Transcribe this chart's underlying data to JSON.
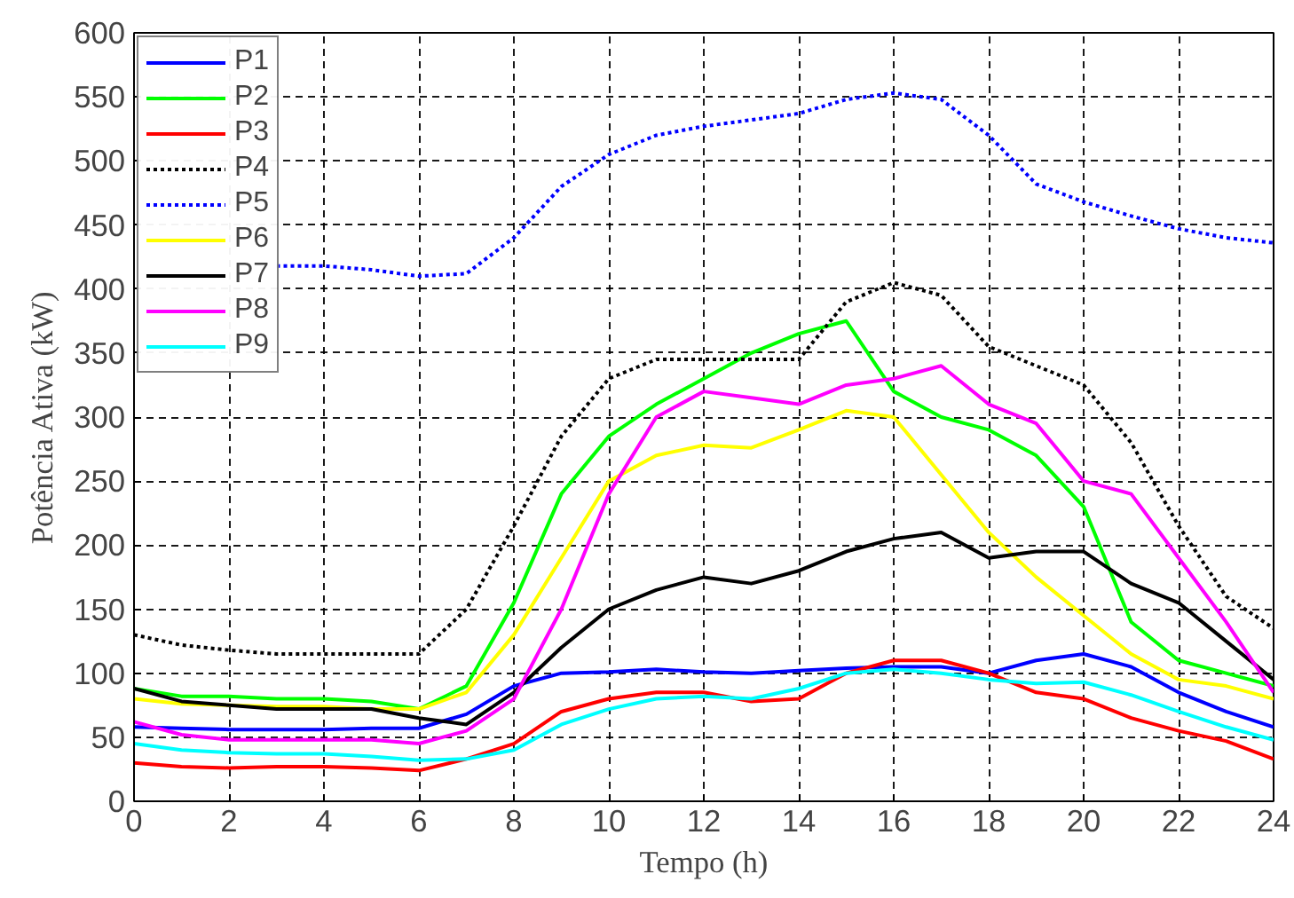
{
  "chart_data": {
    "type": "line",
    "xlabel": "Tempo (h)",
    "ylabel": "Potência Ativa (kW)",
    "x": [
      0,
      1,
      2,
      3,
      4,
      5,
      6,
      7,
      8,
      9,
      10,
      11,
      12,
      13,
      14,
      15,
      16,
      17,
      18,
      19,
      20,
      21,
      22,
      23,
      24
    ],
    "xlim": [
      0,
      24
    ],
    "xticks": [
      0,
      2,
      4,
      6,
      8,
      10,
      12,
      14,
      16,
      18,
      20,
      22,
      24
    ],
    "ylim": [
      0,
      600
    ],
    "yticks": [
      0,
      50,
      100,
      150,
      200,
      250,
      300,
      350,
      400,
      450,
      500,
      550,
      600
    ],
    "grid": true,
    "legend": "top left",
    "marker": "none",
    "series": [
      {
        "name": "P1",
        "color": "#0000ff",
        "line_style": "solid",
        "values": [
          58,
          57,
          56,
          56,
          56,
          57,
          57,
          68,
          90,
          100,
          101,
          103,
          101,
          100,
          102,
          104,
          105,
          105,
          100,
          110,
          115,
          105,
          85,
          70,
          58
        ]
      },
      {
        "name": "P2",
        "color": "#00ff00",
        "line_style": "solid",
        "values": [
          88,
          82,
          82,
          80,
          80,
          78,
          72,
          90,
          155,
          240,
          285,
          310,
          330,
          350,
          365,
          375,
          320,
          300,
          290,
          270,
          230,
          140,
          110,
          100,
          90
        ]
      },
      {
        "name": "P3",
        "color": "#ff0000",
        "line_style": "solid",
        "values": [
          30,
          27,
          26,
          27,
          27,
          26,
          24,
          33,
          45,
          70,
          80,
          85,
          85,
          78,
          80,
          100,
          110,
          110,
          100,
          85,
          80,
          65,
          55,
          47,
          33
        ]
      },
      {
        "name": "P4",
        "color": "#000000",
        "line_style": "dotted",
        "values": [
          130,
          122,
          118,
          115,
          115,
          115,
          115,
          150,
          215,
          285,
          330,
          345,
          345,
          345,
          345,
          390,
          405,
          395,
          355,
          340,
          325,
          280,
          215,
          160,
          135
        ]
      },
      {
        "name": "P5",
        "color": "#0000ff",
        "line_style": "dotted",
        "x": [
          3,
          4,
          5,
          6,
          7,
          8,
          9,
          10,
          11,
          12,
          13,
          14,
          15,
          16,
          17,
          18,
          19,
          20,
          21,
          22,
          23,
          24
        ],
        "values": [
          418,
          418,
          415,
          410,
          412,
          440,
          480,
          505,
          520,
          527,
          532,
          537,
          548,
          553,
          548,
          520,
          482,
          468,
          457,
          447,
          440,
          436
        ]
      },
      {
        "name": "P6",
        "color": "#ffff00",
        "line_style": "solid",
        "values": [
          80,
          76,
          75,
          74,
          74,
          72,
          72,
          85,
          130,
          190,
          250,
          270,
          278,
          276,
          290,
          305,
          300,
          255,
          210,
          175,
          145,
          115,
          95,
          90,
          80
        ]
      },
      {
        "name": "P7",
        "color": "#000000",
        "line_style": "solid",
        "values": [
          88,
          78,
          75,
          72,
          72,
          72,
          65,
          60,
          85,
          120,
          150,
          165,
          175,
          170,
          180,
          195,
          205,
          210,
          190,
          195,
          195,
          170,
          155,
          125,
          95
        ]
      },
      {
        "name": "P8",
        "color": "#ff00ff",
        "line_style": "solid",
        "values": [
          62,
          52,
          48,
          48,
          48,
          48,
          45,
          55,
          80,
          150,
          240,
          300,
          320,
          315,
          310,
          325,
          330,
          340,
          310,
          295,
          250,
          240,
          190,
          140,
          85
        ]
      },
      {
        "name": "P9",
        "color": "#00ffff",
        "line_style": "solid",
        "values": [
          45,
          40,
          38,
          37,
          37,
          35,
          32,
          33,
          40,
          60,
          72,
          80,
          82,
          80,
          88,
          100,
          103,
          100,
          95,
          92,
          93,
          83,
          70,
          58,
          48
        ]
      }
    ]
  }
}
